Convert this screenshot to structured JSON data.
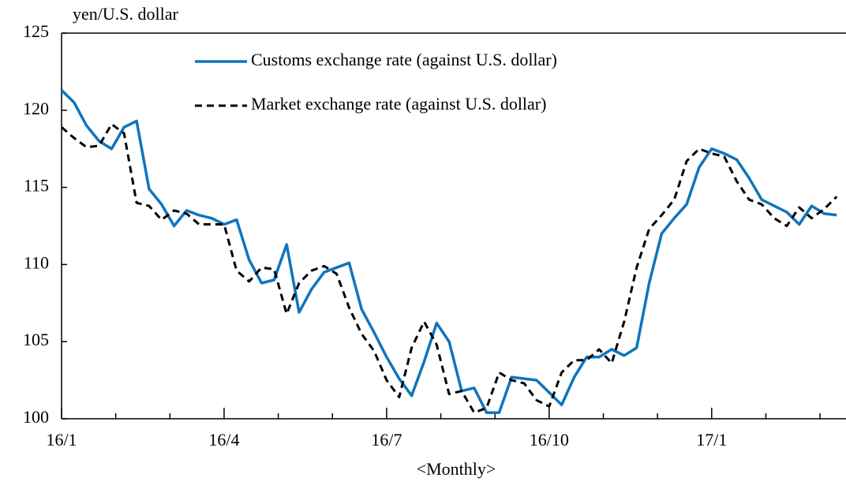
{
  "chart_data": {
    "type": "line",
    "ylabel": "yen/U.S. dollar",
    "xlabel": "<Monthly>",
    "x": [
      0,
      0.231,
      0.462,
      0.692,
      0.923,
      1.154,
      1.385,
      1.615,
      1.846,
      2.077,
      2.308,
      2.538,
      2.769,
      3,
      3.231,
      3.462,
      3.692,
      3.923,
      4.154,
      4.385,
      4.615,
      4.846,
      5.077,
      5.308,
      5.538,
      5.769,
      6,
      6.231,
      6.462,
      6.692,
      6.923,
      7.154,
      7.385,
      7.615,
      7.846,
      8.077,
      8.308,
      8.538,
      8.769,
      9,
      9.231,
      9.462,
      9.692,
      9.923,
      10.154,
      10.385,
      10.615,
      10.846,
      11.077,
      11.308,
      11.538,
      11.769,
      12,
      12.231,
      12.462,
      12.692,
      12.923,
      13.154,
      13.385,
      13.615,
      13.846,
      14.077,
      14.308
    ],
    "series": [
      {
        "name": "Customs exchange rate (against U.S. dollar)",
        "color": "#0f75bc",
        "dash": false,
        "values": [
          121.3,
          120.5,
          119.0,
          118.0,
          117.5,
          118.9,
          119.3,
          114.9,
          113.9,
          112.5,
          113.5,
          113.2,
          113.0,
          112.6,
          112.9,
          110.3,
          108.8,
          109.0,
          111.3,
          106.9,
          108.4,
          109.5,
          109.8,
          110.1,
          107.1,
          105.6,
          104.0,
          102.6,
          101.5,
          103.7,
          106.2,
          105.0,
          101.8,
          102.0,
          100.4,
          100.4,
          102.7,
          102.6,
          102.5,
          101.7,
          100.9,
          102.7,
          104.0,
          104.0,
          104.5,
          104.1,
          104.6,
          108.8,
          112.0,
          113.0,
          113.9,
          116.3,
          117.5,
          117.2,
          116.8,
          115.6,
          114.2,
          113.8,
          113.4,
          112.6,
          113.8,
          113.3,
          113.2
        ]
      },
      {
        "name": "Market exchange rate (against U.S. dollar)",
        "color": "#000000",
        "dash": true,
        "values": [
          118.9,
          118.2,
          117.6,
          117.7,
          119.1,
          118.5,
          114.0,
          113.8,
          112.9,
          113.5,
          113.3,
          112.6,
          112.6,
          112.6,
          109.6,
          108.9,
          109.8,
          109.7,
          106.8,
          108.8,
          109.6,
          109.9,
          109.4,
          107.2,
          105.5,
          104.4,
          102.5,
          101.4,
          104.6,
          106.3,
          104.8,
          101.6,
          101.8,
          100.4,
          100.7,
          103.0,
          102.5,
          102.3,
          101.2,
          100.8,
          103.0,
          103.8,
          103.8,
          104.5,
          103.6,
          106.3,
          109.8,
          112.3,
          113.2,
          114.2,
          116.7,
          117.5,
          117.2,
          117.0,
          115.4,
          114.2,
          113.9,
          113.0,
          112.5,
          113.7,
          113.0,
          113.6,
          114.4
        ]
      }
    ],
    "xlim": [
      0,
      14.45
    ],
    "xticks": [
      {
        "value": 0,
        "label": "16/1"
      },
      {
        "value": 3,
        "label": "16/4"
      },
      {
        "value": 6,
        "label": "16/7"
      },
      {
        "value": 9,
        "label": "16/10"
      },
      {
        "value": 12,
        "label": "17/1"
      }
    ],
    "xminor_ticks": [
      1,
      2,
      4,
      5,
      7,
      8,
      10,
      11,
      13,
      14
    ],
    "ylim": [
      100,
      125
    ],
    "yticks": [
      100,
      105,
      110,
      115,
      120,
      125
    ],
    "grid": false,
    "legend": "top"
  }
}
